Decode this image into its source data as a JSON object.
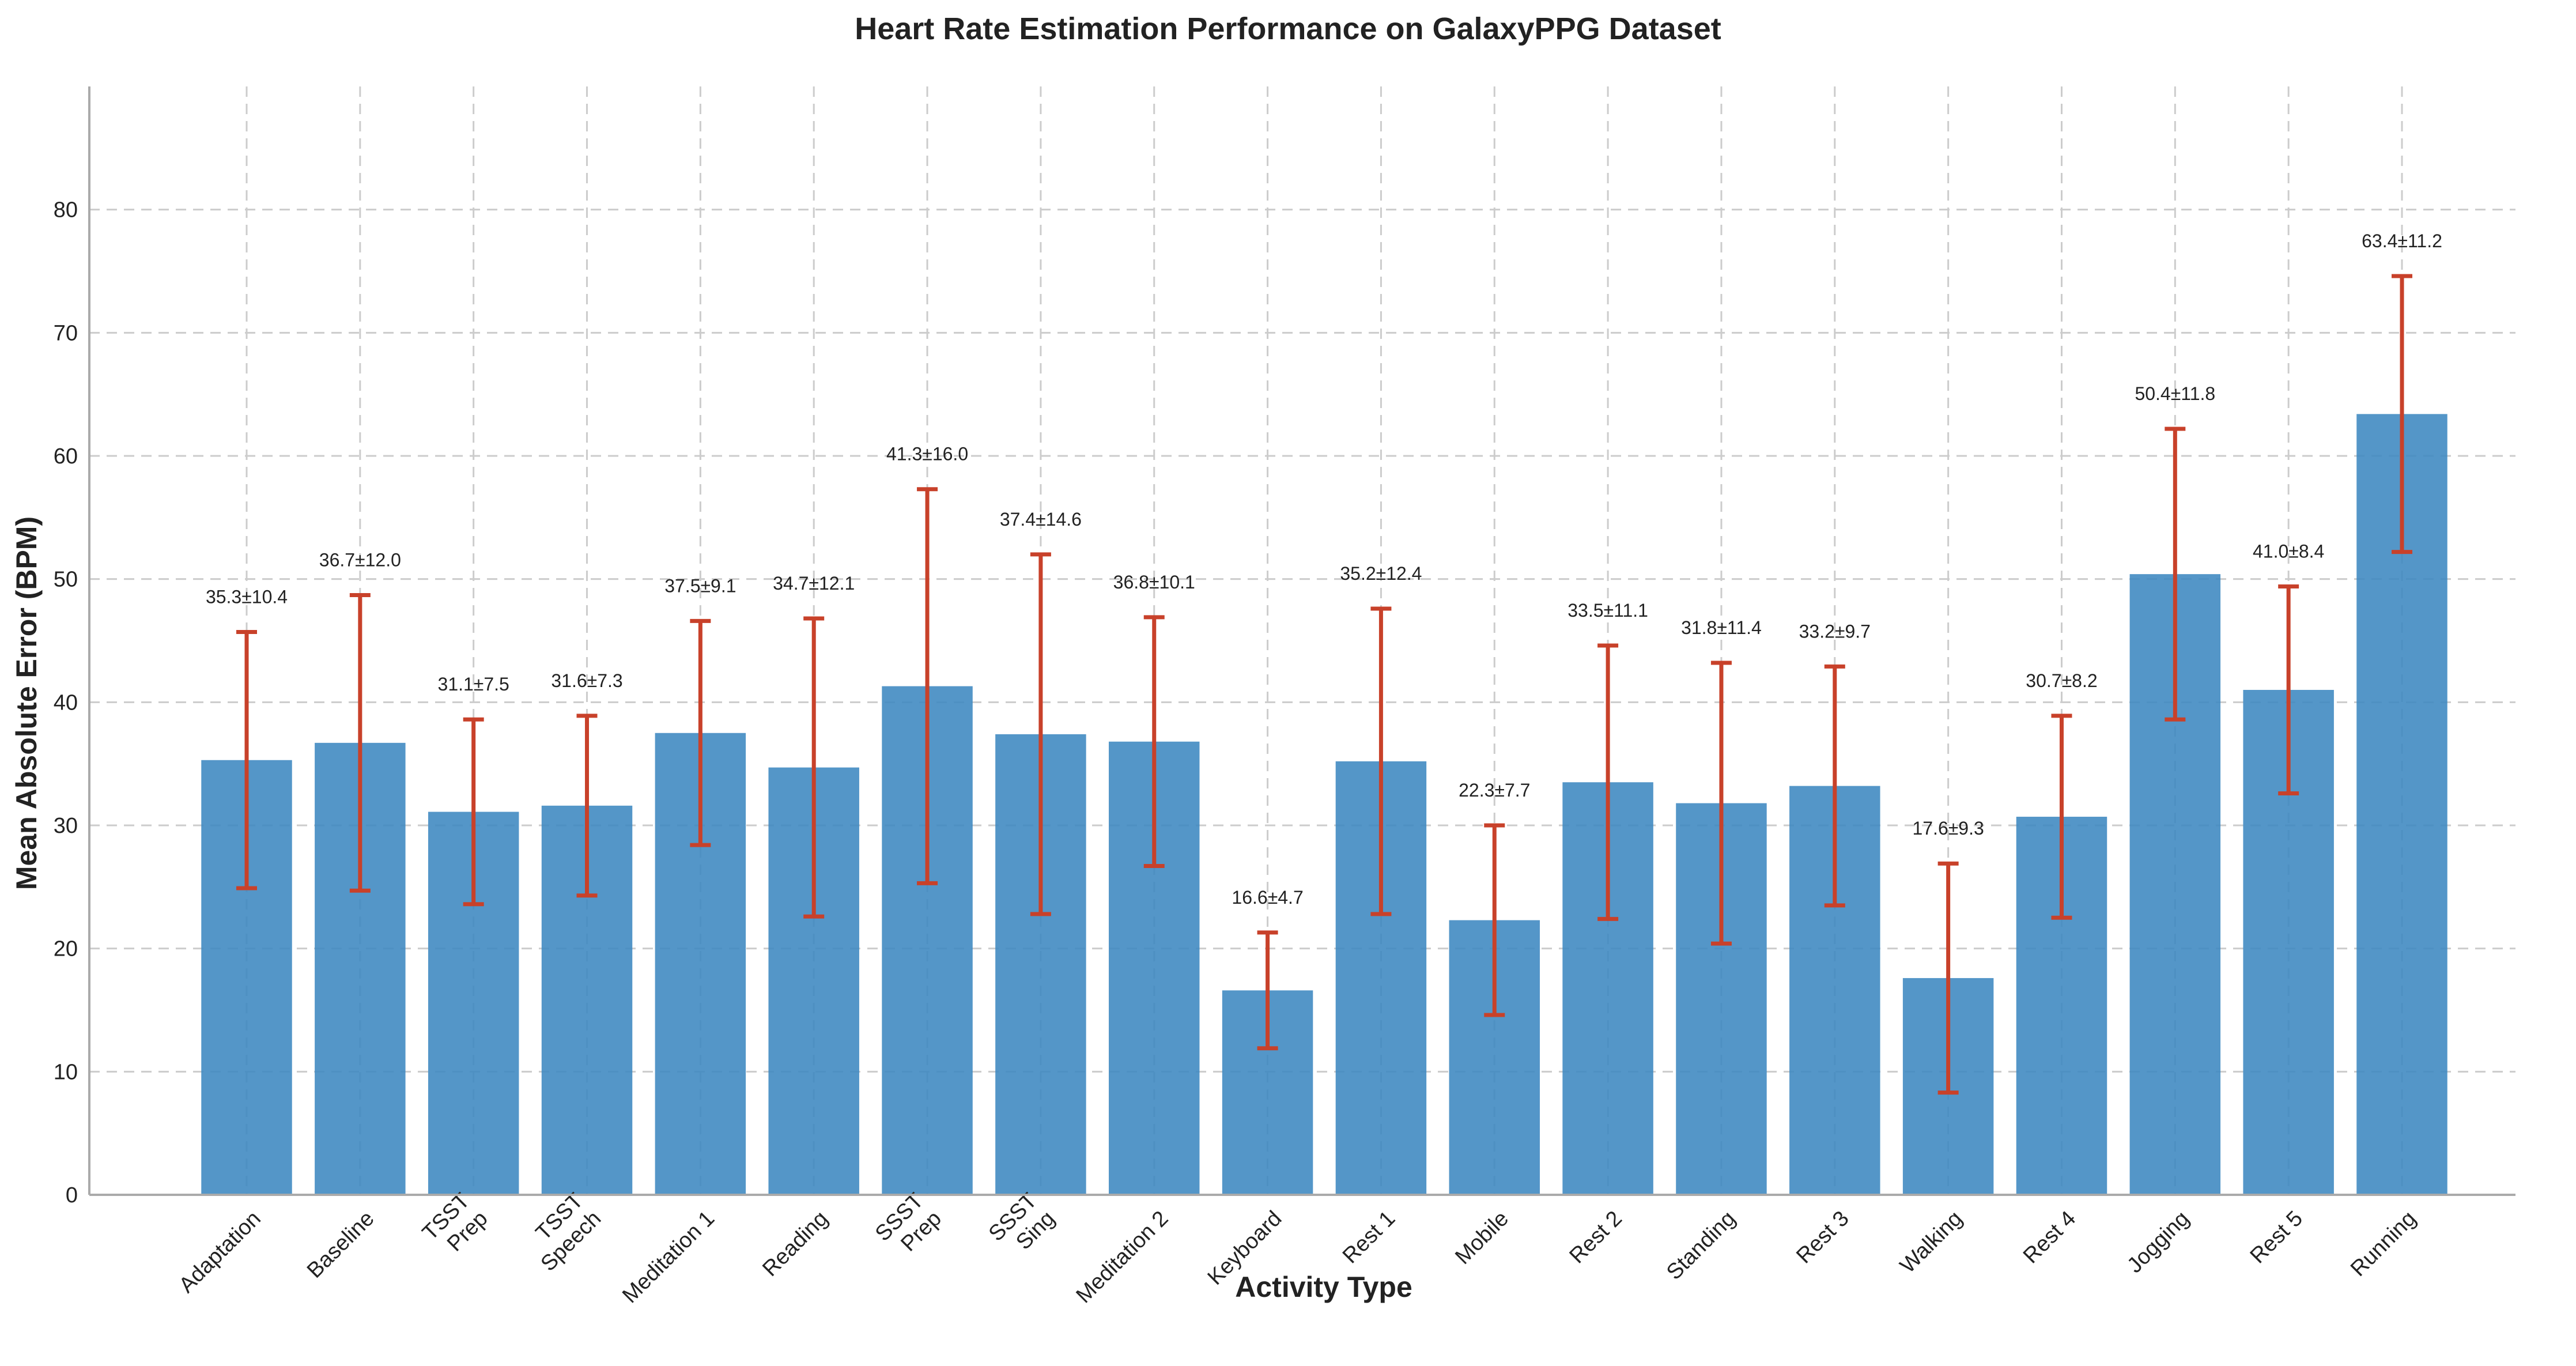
{
  "chart_data": {
    "type": "bar",
    "title": "Heart Rate Estimation Performance on GalaxyPPG Dataset",
    "xlabel": "Activity Type",
    "ylabel": "Mean Absolute Error (BPM)",
    "ylim": [
      0,
      90
    ],
    "yticks": [
      0,
      10,
      20,
      30,
      40,
      50,
      60,
      70,
      80
    ],
    "grid": true,
    "error_bars": true,
    "colors": {
      "bar": "#3c87c0",
      "error": "#c8412a"
    },
    "categories": [
      "Adaptation",
      "Baseline",
      "TSST\nPrep",
      "TSST\nSpeech",
      "Meditation 1",
      "Reading",
      "SSST\nPrep",
      "SSST\nSing",
      "Meditation 2",
      "Keyboard",
      "Rest 1",
      "Mobile",
      "Rest 2",
      "Standing",
      "Rest 3",
      "Walking",
      "Rest 4",
      "Jogging",
      "Rest 5",
      "Running"
    ],
    "values": [
      35.3,
      36.7,
      31.1,
      31.6,
      37.5,
      34.7,
      41.3,
      37.4,
      36.8,
      16.6,
      35.2,
      22.3,
      33.5,
      31.8,
      33.2,
      17.6,
      30.7,
      50.4,
      41.0,
      63.4
    ],
    "errors": [
      10.4,
      12.0,
      7.5,
      7.3,
      9.1,
      12.1,
      16.0,
      14.6,
      10.1,
      4.7,
      12.4,
      7.7,
      11.1,
      11.4,
      9.7,
      9.3,
      8.2,
      11.8,
      8.4,
      11.2
    ],
    "data_labels": [
      "35.3±10.4",
      "36.7±12.0",
      "31.1±7.5",
      "31.6±7.3",
      "37.5±9.1",
      "34.7±12.1",
      "41.3±16.0",
      "37.4±14.6",
      "36.8±10.1",
      "16.6±4.7",
      "35.2±12.4",
      "22.3±7.7",
      "33.5±11.1",
      "31.8±11.4",
      "33.2±9.7",
      "17.6±9.3",
      "30.7±8.2",
      "50.4±11.8",
      "41.0±8.4",
      "63.4±11.2"
    ]
  }
}
